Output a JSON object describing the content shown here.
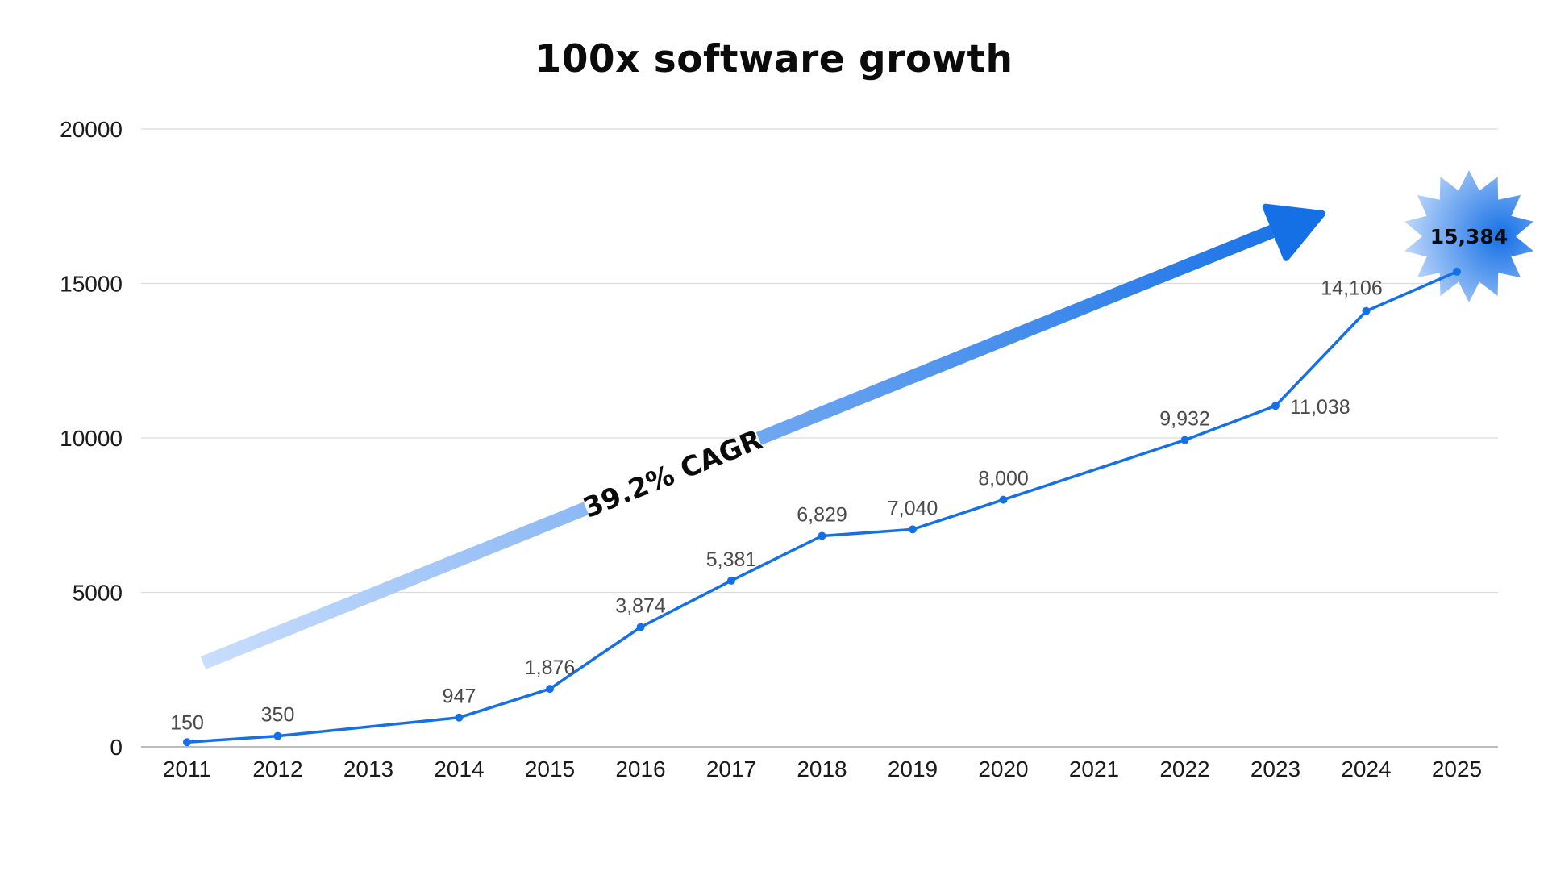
{
  "chart_data": {
    "type": "line",
    "title": "100x software growth",
    "xlabel": "",
    "ylabel": "",
    "ylim": [
      0,
      20000
    ],
    "yticks": [
      0,
      5000,
      10000,
      15000,
      20000
    ],
    "categories": [
      "2011",
      "2012",
      "2013",
      "2014",
      "2015",
      "2016",
      "2017",
      "2018",
      "2019",
      "2020",
      "2021",
      "2022",
      "2023",
      "2024",
      "2025"
    ],
    "series": [
      {
        "name": "Software",
        "color": "#1570e6",
        "points": [
          {
            "x": "2011",
            "value": 150,
            "label": "150"
          },
          {
            "x": "2012",
            "value": 350,
            "label": "350"
          },
          {
            "x": "2014",
            "value": 947,
            "label": "947"
          },
          {
            "x": "2015",
            "value": 1876,
            "label": "1,876"
          },
          {
            "x": "2016",
            "value": 3874,
            "label": "3,874"
          },
          {
            "x": "2017",
            "value": 5381,
            "label": "5,381"
          },
          {
            "x": "2018",
            "value": 6829,
            "label": "6,829"
          },
          {
            "x": "2019",
            "value": 7040,
            "label": "7,040"
          },
          {
            "x": "2020",
            "value": 8000,
            "label": "8,000"
          },
          {
            "x": "2022",
            "value": 9932,
            "label": "9,932"
          },
          {
            "x": "2023",
            "value": 11038,
            "label": "11,038"
          },
          {
            "x": "2024",
            "value": 14106,
            "label": "14,106"
          },
          {
            "x": "2025",
            "value": 15384,
            "label": "15,384"
          }
        ]
      }
    ],
    "annotations": {
      "trend_arrow_label": "39.2% CAGR",
      "highlight_label": "15,384"
    },
    "colors": {
      "gridline": "#dcdcdc",
      "axis": "#bdbdbd",
      "arrow_start": "#c9defc",
      "arrow_end": "#1570e6"
    },
    "grid": true,
    "legend": "none"
  }
}
